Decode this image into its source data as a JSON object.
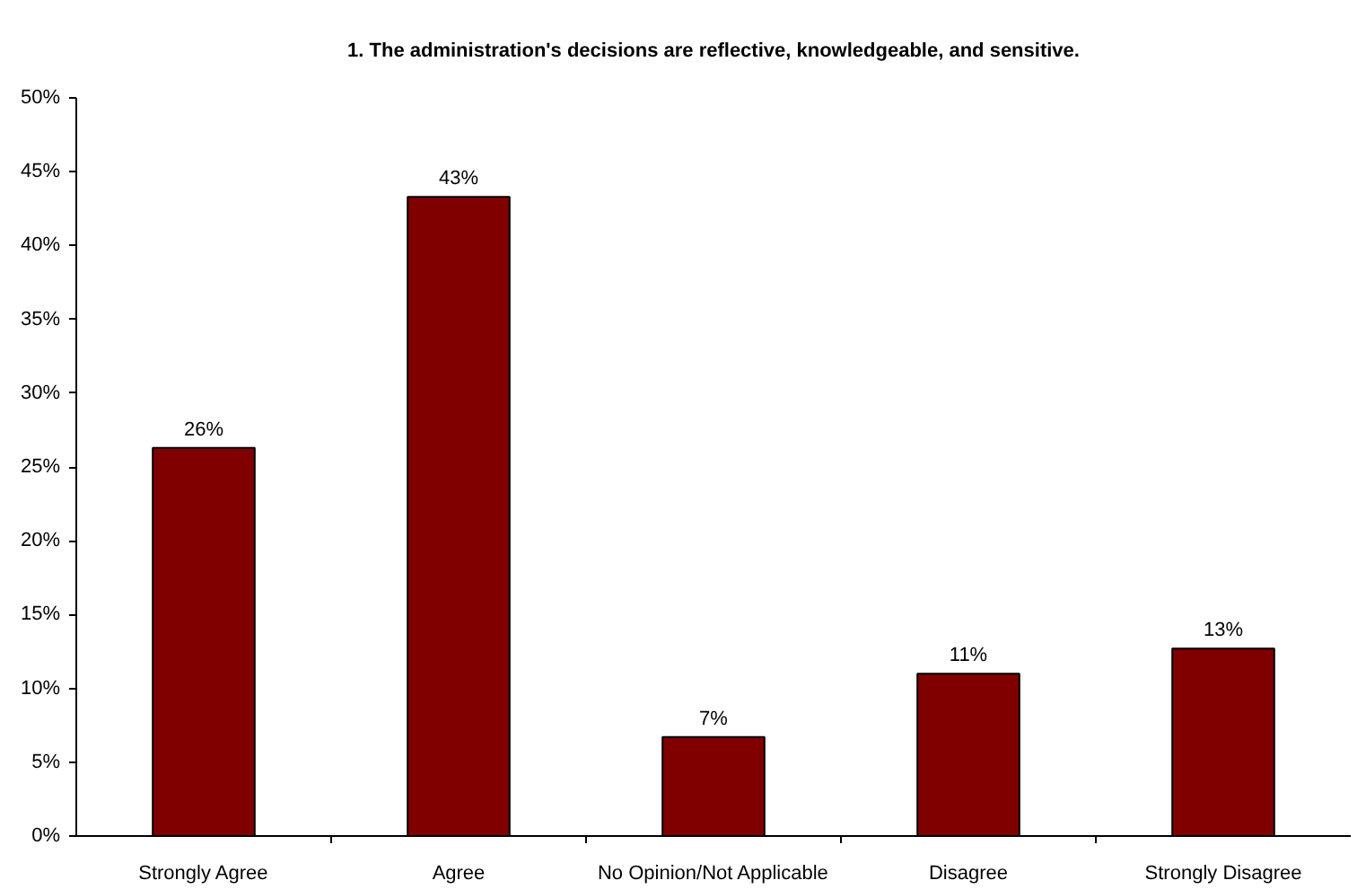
{
  "chart_data": {
    "type": "bar",
    "title": "1. The administration's decisions are reflective, knowledgeable, and sensitive.",
    "categories": [
      "Strongly Agree",
      "Agree",
      "No Opinion/Not Applicable",
      "Disagree",
      "Strongly Disagree"
    ],
    "values": [
      26.3,
      43.3,
      6.7,
      11.0,
      12.7
    ],
    "value_labels": [
      "26%",
      "43%",
      "7%",
      "11%",
      "13%"
    ],
    "color": "#800000",
    "ylim": [
      0,
      50
    ],
    "yticks": [
      {
        "value": 0,
        "label": "0%"
      },
      {
        "value": 5,
        "label": "5%"
      },
      {
        "value": 10,
        "label": "10%"
      },
      {
        "value": 15,
        "label": "15%"
      },
      {
        "value": 20,
        "label": "20%"
      },
      {
        "value": 25,
        "label": "25%"
      },
      {
        "value": 30,
        "label": "30%"
      },
      {
        "value": 35,
        "label": "35%"
      },
      {
        "value": 40,
        "label": "40%"
      },
      {
        "value": 45,
        "label": "45%"
      },
      {
        "value": 50,
        "label": "50%"
      }
    ]
  }
}
